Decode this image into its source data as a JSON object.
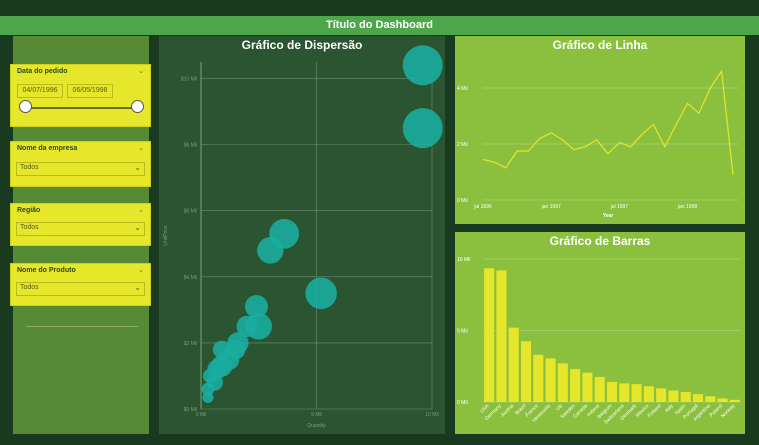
{
  "dashboard": {
    "title": "Título do Dashboard"
  },
  "filters": {
    "date": {
      "title": "Data do pedido",
      "start": "04/07/1996",
      "end": "06/05/1998"
    },
    "company": {
      "title": "Nome da empresa",
      "value": "Todos"
    },
    "region": {
      "title": "Região",
      "value": "Todos"
    },
    "product": {
      "title": "Nome do Produto",
      "value": "Todos"
    }
  },
  "colors": {
    "background": "#1a3a1f",
    "title_bar": "#4ea64a",
    "sidebar": "#568a35",
    "slicer": "#e6e62a",
    "scatter_panel": "#2a5530",
    "scatter_marker": "#1aada0",
    "line_panel": "#8bc03f",
    "line_stroke": "#e6e62a",
    "bar_fill": "#e6e62a"
  },
  "chart_data": [
    {
      "type": "scatter",
      "title": "Gráfico de Dispersão",
      "xlabel": "Quantity",
      "ylabel": "UnitPrice",
      "xlim": [
        0,
        10
      ],
      "ylim": [
        0,
        10.5
      ],
      "x_ticks": [
        "0 Mil",
        "5 Mil",
        "10 Mil"
      ],
      "y_ticks": [
        "$0 Mil",
        "$2 Mil",
        "$4 Mil",
        "$6 Mil",
        "$8 Mil",
        "$10 Mil"
      ],
      "points": [
        {
          "x": 9.6,
          "y": 10.4,
          "size": 1.0
        },
        {
          "x": 9.6,
          "y": 8.5,
          "size": 1.0
        },
        {
          "x": 3.6,
          "y": 5.3,
          "size": 0.7
        },
        {
          "x": 3.0,
          "y": 4.8,
          "size": 0.6
        },
        {
          "x": 5.2,
          "y": 3.5,
          "size": 0.75
        },
        {
          "x": 2.4,
          "y": 3.1,
          "size": 0.5
        },
        {
          "x": 2.5,
          "y": 2.5,
          "size": 0.6
        },
        {
          "x": 2.0,
          "y": 2.5,
          "size": 0.45
        },
        {
          "x": 1.6,
          "y": 2.0,
          "size": 0.45
        },
        {
          "x": 1.5,
          "y": 1.8,
          "size": 0.4
        },
        {
          "x": 1.2,
          "y": 1.5,
          "size": 0.45
        },
        {
          "x": 0.9,
          "y": 1.3,
          "size": 0.45
        },
        {
          "x": 0.7,
          "y": 1.2,
          "size": 0.4
        },
        {
          "x": 0.9,
          "y": 1.8,
          "size": 0.35
        },
        {
          "x": 0.6,
          "y": 0.8,
          "size": 0.3
        },
        {
          "x": 0.4,
          "y": 1.0,
          "size": 0.25
        },
        {
          "x": 0.3,
          "y": 0.6,
          "size": 0.2
        },
        {
          "x": 0.3,
          "y": 0.35,
          "size": 0.15
        }
      ]
    },
    {
      "type": "line",
      "title": "Gráfico de Linha",
      "xlabel": "Year",
      "ylabel": "",
      "ylim": [
        0,
        4.5
      ],
      "x_ticks": [
        "jul 1996",
        "jan 1997",
        "jul 1997",
        "jan 1998"
      ],
      "y_ticks": [
        "0 Mil",
        "2 Mil",
        "4 Mil"
      ],
      "x": [
        "1996-07",
        "1996-08",
        "1996-09",
        "1996-10",
        "1996-11",
        "1996-12",
        "1997-01",
        "1997-02",
        "1997-03",
        "1997-04",
        "1997-05",
        "1997-06",
        "1997-07",
        "1997-08",
        "1997-09",
        "1997-10",
        "1997-11",
        "1997-12",
        "1998-01",
        "1998-02",
        "1998-03",
        "1998-04",
        "1998-05"
      ],
      "values": [
        1.45,
        1.35,
        1.15,
        1.75,
        1.75,
        2.2,
        2.4,
        2.15,
        1.8,
        1.9,
        2.15,
        1.65,
        2.05,
        1.9,
        2.35,
        2.7,
        1.9,
        2.7,
        3.45,
        3.1,
        4.0,
        4.6,
        0.9
      ]
    },
    {
      "type": "bar",
      "title": "Gráfico de Barras",
      "xlabel": "",
      "ylabel": "",
      "ylim": [
        0,
        10
      ],
      "y_ticks": [
        "0 Mil",
        "5 Mil",
        "10 Mil"
      ],
      "categories": [
        "USA",
        "Germany",
        "Austria",
        "Brazil",
        "France",
        "Venezuela",
        "UK",
        "Sweden",
        "Canada",
        "Ireland",
        "Belgium",
        "Switzerland",
        "Denmark",
        "Mexico",
        "Finland",
        "Italy",
        "Spain",
        "Portugal",
        "Argentina",
        "Poland",
        "Norway"
      ],
      "values": [
        9.35,
        9.2,
        5.2,
        4.25,
        3.3,
        3.05,
        2.7,
        2.3,
        2.05,
        1.75,
        1.4,
        1.3,
        1.25,
        1.1,
        0.95,
        0.8,
        0.7,
        0.55,
        0.4,
        0.25,
        0.15
      ]
    }
  ]
}
